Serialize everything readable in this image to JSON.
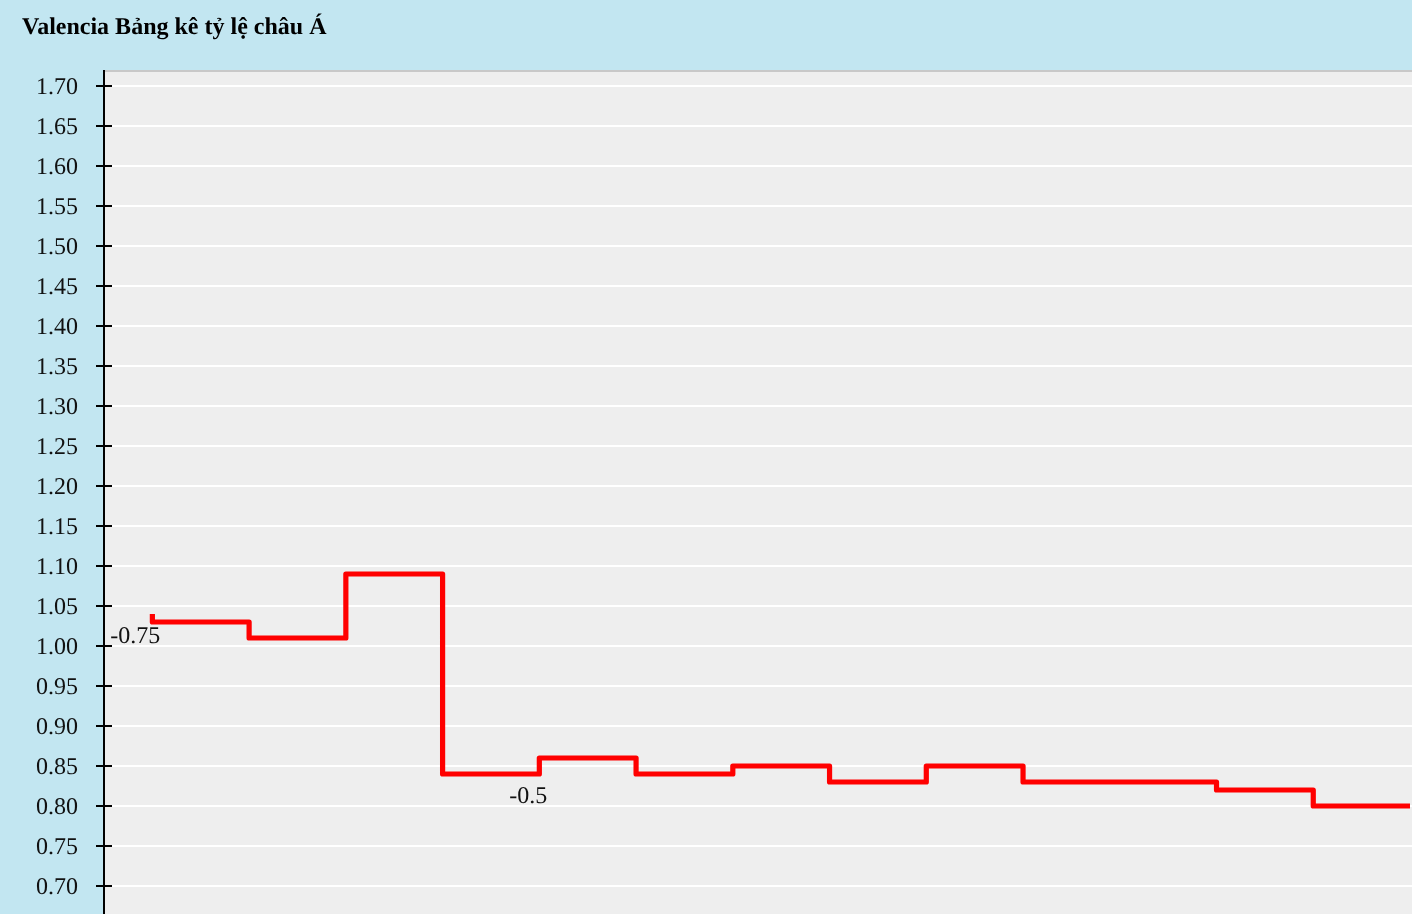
{
  "chart_data": {
    "type": "step",
    "title": "Valencia Bảng kê tỷ lệ châu Á",
    "categories": [
      null,
      null,
      null,
      null,
      null,
      null,
      null,
      null,
      null,
      null,
      null,
      null,
      null,
      null
    ],
    "values": [
      1.04,
      1.03,
      1.01,
      1.09,
      0.84,
      0.86,
      0.84,
      0.85,
      0.83,
      0.85,
      0.83,
      0.83,
      0.82,
      0.8
    ],
    "color": "#ff0000",
    "ylim": [
      0.665,
      1.72
    ],
    "yticks": [
      {
        "value": 0.7,
        "label": "0.70"
      },
      0.75,
      {
        "value": 0.8,
        "label": "0.80"
      },
      0.85,
      {
        "value": 0.9,
        "label": "0.90"
      },
      0.95,
      {
        "value": 1.0,
        "label": "1.00"
      },
      1.05,
      {
        "value": 1.1,
        "label": "1.10"
      },
      1.15,
      {
        "value": 1.2,
        "label": "1.20"
      },
      1.25,
      {
        "value": 1.3,
        "label": "1.30"
      },
      1.35,
      {
        "value": 1.4,
        "label": "1.40"
      },
      1.45,
      {
        "value": 1.5,
        "label": "1.50"
      },
      1.55,
      {
        "value": 1.6,
        "label": "1.60"
      },
      1.65,
      {
        "value": 1.7,
        "label": "1.70"
      }
    ],
    "grid": "y",
    "tick_labels": "y",
    "annotations": [
      "-0.75",
      {
        "text": "-0.5",
        "y": 0.84
      }
    ]
  }
}
